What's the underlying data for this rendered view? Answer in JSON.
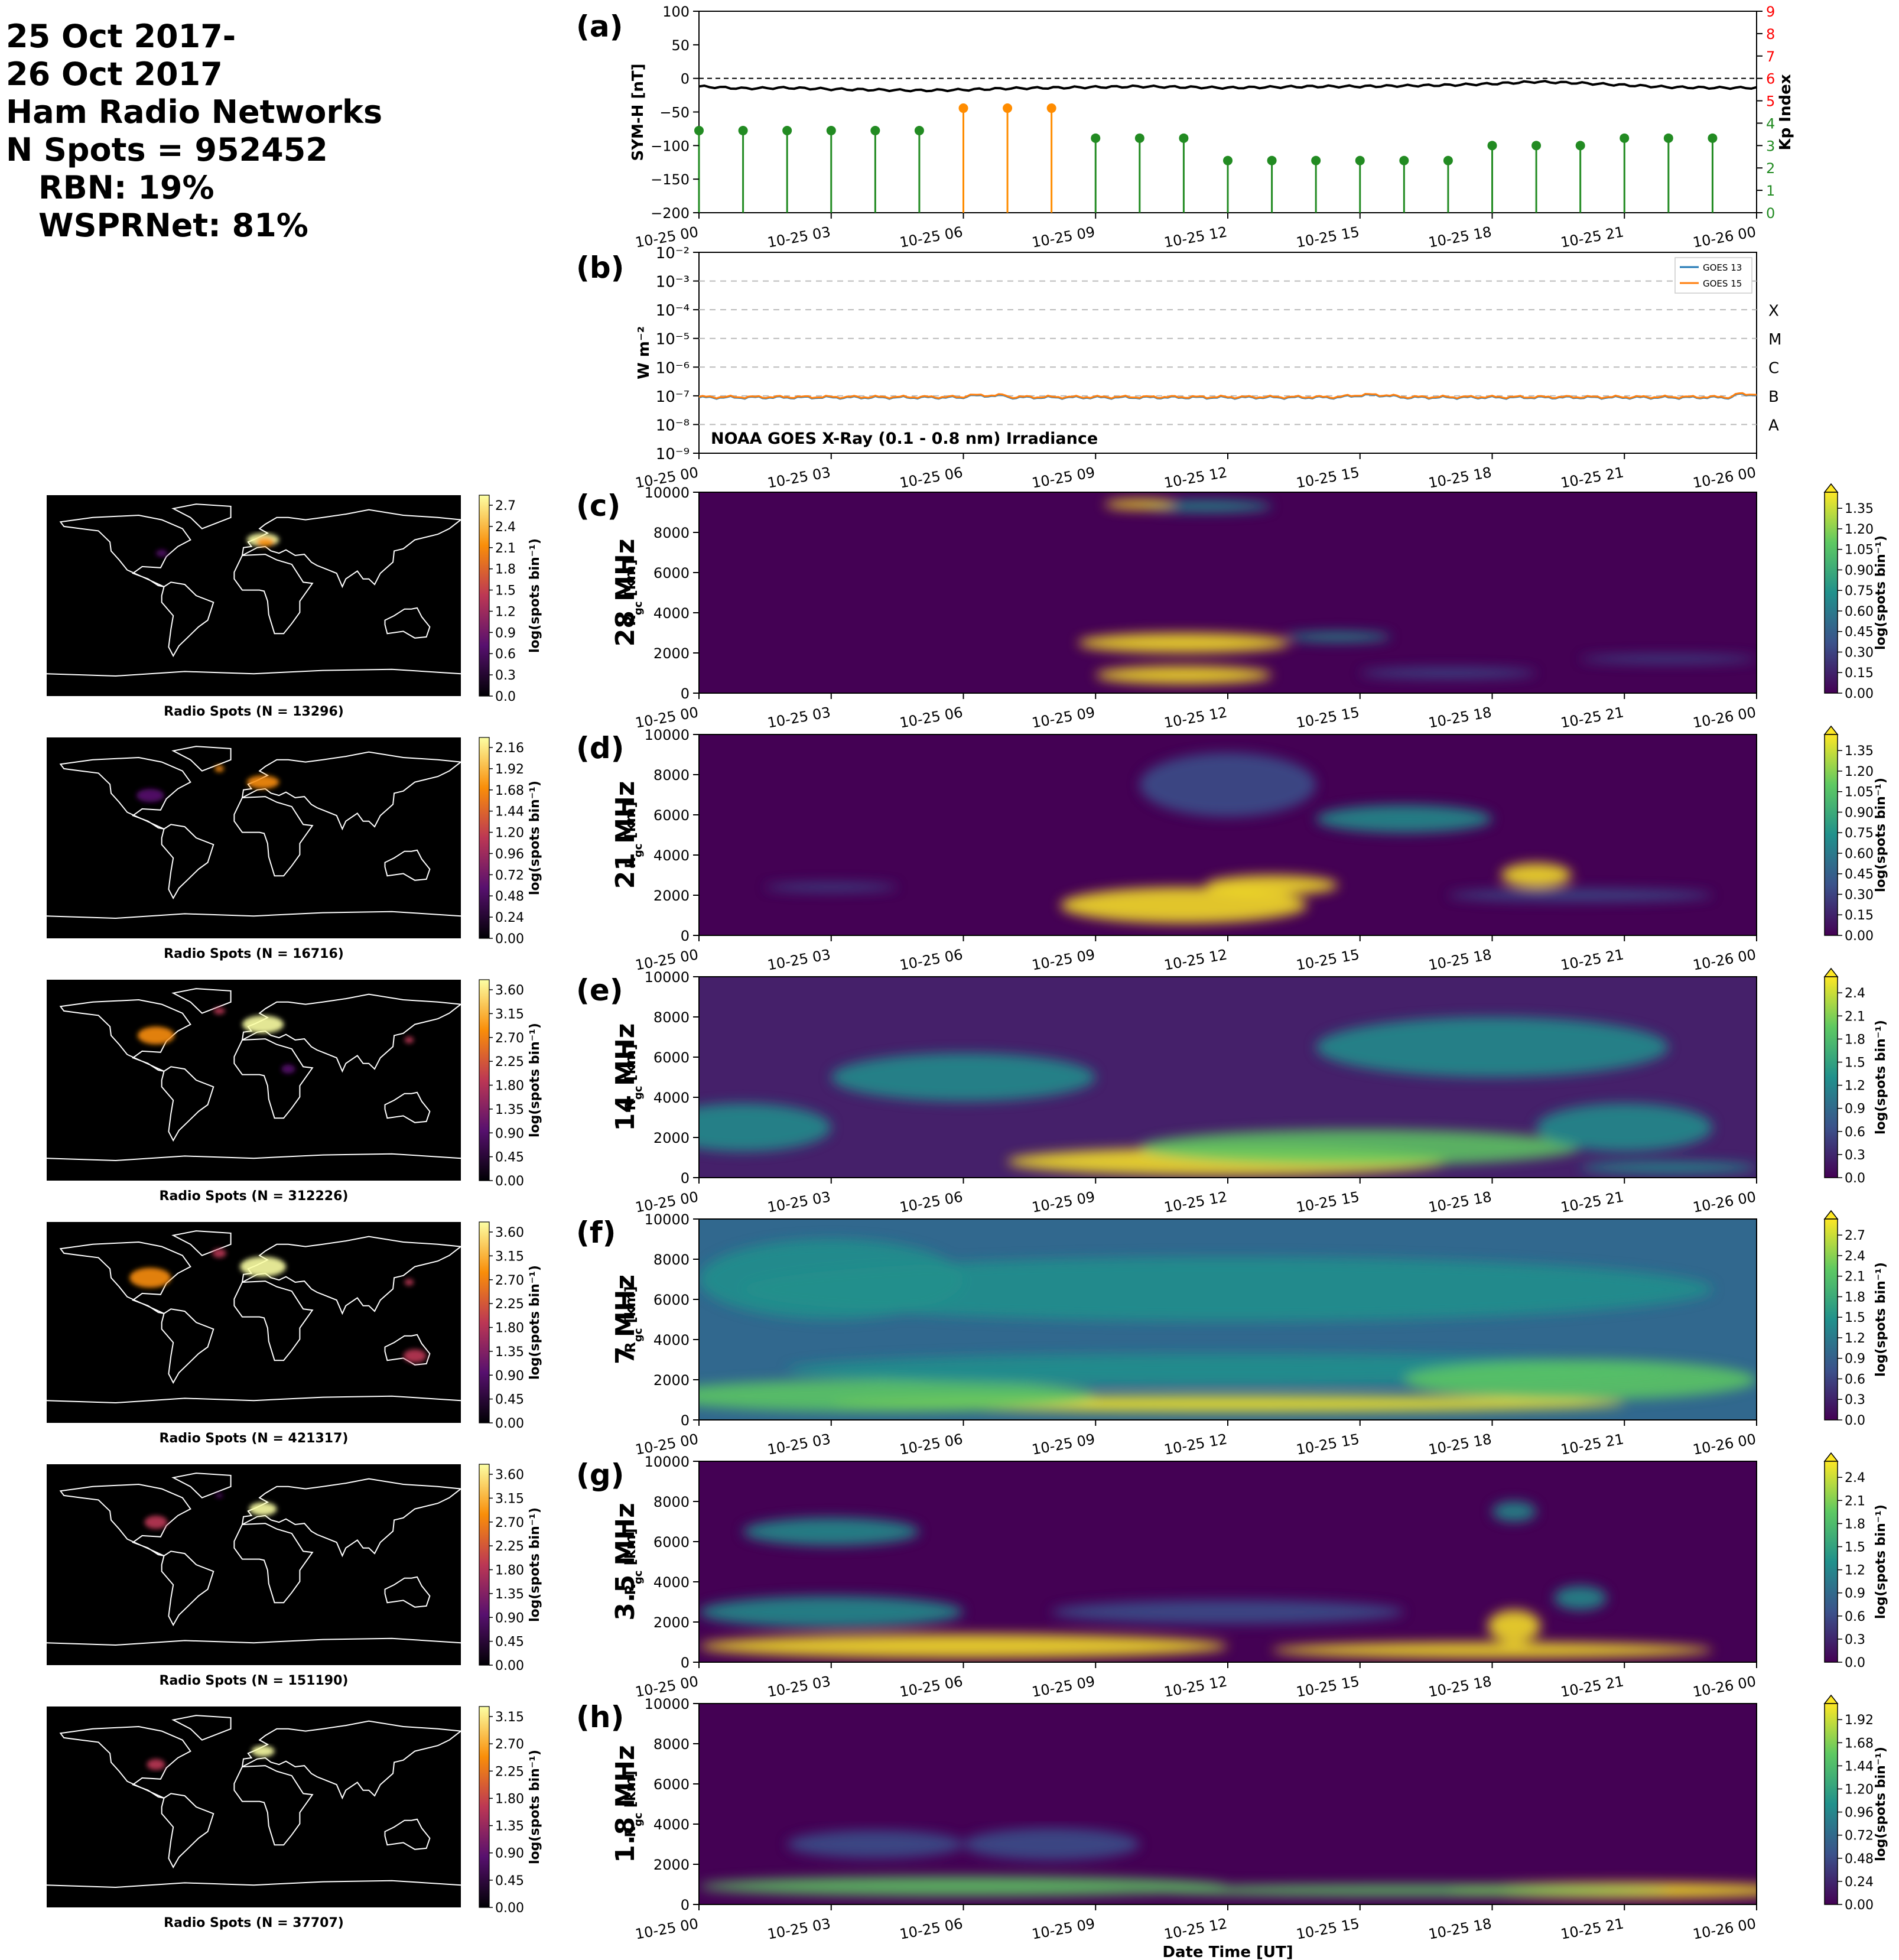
{
  "summary": {
    "line1": "25 Oct 2017-",
    "line2": "26 Oct 2017",
    "line3": "Ham Radio Networks",
    "line4": "N Spots = 952452",
    "line5": "RBN: 19%",
    "line6": "WSPRNet: 81%"
  },
  "time_ticks": [
    "10-25 00",
    "10-25 03",
    "10-25 06",
    "10-25 09",
    "10-25 12",
    "10-25 15",
    "10-25 18",
    "10-25 21",
    "10-26 00"
  ],
  "xlabel_bottom": "Date Time [UT]",
  "colors": {
    "kp_green": "#228b22",
    "kp_orange": "#ff8c00",
    "goes13": "#1f77b4",
    "goes15": "#ff7f0e",
    "right_axis_red": "#ff0000"
  },
  "panel_a": {
    "label": "(a)",
    "ylabel_left": "SYM-H [nT]",
    "ylabel_right": "Kp Index",
    "ylim_left": [
      -200,
      100
    ],
    "yticks_left": [
      "100",
      "50",
      "0",
      "−50",
      "−100",
      "−150",
      "−200"
    ],
    "ylim_right": [
      0,
      9
    ],
    "yticks_right": [
      "0",
      "1",
      "2",
      "3",
      "4",
      "5",
      "6",
      "7",
      "8",
      "9"
    ],
    "symh_approx": [
      -12,
      -15,
      -14,
      -16,
      -17,
      -18,
      -17,
      -15,
      -14,
      -13,
      -12,
      -13,
      -14,
      -13,
      -12,
      -12,
      -11,
      -10,
      -8,
      -5,
      -7,
      -10,
      -13,
      -14,
      -14
    ],
    "kp_hours": [
      0,
      1,
      2,
      3,
      4,
      5,
      6,
      7,
      8,
      9,
      10,
      11,
      12,
      13,
      14,
      15,
      16,
      17,
      18,
      19,
      20,
      21,
      22,
      23,
      24
    ],
    "kp_values": [
      3.67,
      3.67,
      3.67,
      3.67,
      3.67,
      3.67,
      4.67,
      4.67,
      4.67,
      3.33,
      3.33,
      3.33,
      2.33,
      2.33,
      2.33,
      2.33,
      2.33,
      2.33,
      3.0,
      3.0,
      3.0,
      3.33,
      3.33,
      3.33
    ]
  },
  "panel_b": {
    "label": "(b)",
    "ylabel": "W m⁻²",
    "yticks": [
      "10⁻²",
      "10⁻³",
      "10⁻⁴",
      "10⁻⁵",
      "10⁻⁶",
      "10⁻⁷",
      "10⁻⁸",
      "10⁻⁹"
    ],
    "classes": [
      "X",
      "M",
      "C",
      "B",
      "A"
    ],
    "legend": [
      "GOES 13",
      "GOES 15"
    ],
    "annotation": "NOAA GOES X-Ray (0.1 - 0.8 nm) Irradiance",
    "flux_exponent_approx": -7.05
  },
  "rti_common": {
    "ylabel": "R_gc [km]",
    "yticks": [
      "0",
      "2000",
      "4000",
      "6000",
      "8000",
      "10000"
    ],
    "cbar_label": "log(spots bin⁻¹)",
    "map_cbar_label": "log(spots bin⁻¹)"
  },
  "panels": [
    {
      "label": "(c)",
      "band": "28 MHz",
      "map_title": "Radio Spots (N = 13296)",
      "map_ticks": [
        "2.7",
        "2.4",
        "2.1",
        "1.8",
        "1.5",
        "1.2",
        "0.9",
        "0.6",
        "0.3",
        "0.0"
      ],
      "cbar_ticks": [
        "1.35",
        "1.20",
        "1.05",
        "0.90",
        "0.75",
        "0.60",
        "0.45",
        "0.30",
        "0.15",
        "0.00"
      ]
    },
    {
      "label": "(d)",
      "band": "21 MHz",
      "map_title": "Radio Spots (N = 16716)",
      "map_ticks": [
        "2.16",
        "1.92",
        "1.68",
        "1.44",
        "1.20",
        "0.96",
        "0.72",
        "0.48",
        "0.24",
        "0.00"
      ],
      "cbar_ticks": [
        "1.35",
        "1.20",
        "1.05",
        "0.90",
        "0.75",
        "0.60",
        "0.45",
        "0.30",
        "0.15",
        "0.00"
      ]
    },
    {
      "label": "(e)",
      "band": "14 MHz",
      "map_title": "Radio Spots (N = 312226)",
      "map_ticks": [
        "3.60",
        "3.15",
        "2.70",
        "2.25",
        "1.80",
        "1.35",
        "0.90",
        "0.45",
        "0.00"
      ],
      "cbar_ticks": [
        "2.4",
        "2.1",
        "1.8",
        "1.5",
        "1.2",
        "0.9",
        "0.6",
        "0.3",
        "0.0"
      ]
    },
    {
      "label": "(f)",
      "band": "7 MHz",
      "map_title": "Radio Spots (N = 421317)",
      "map_ticks": [
        "3.60",
        "3.15",
        "2.70",
        "2.25",
        "1.80",
        "1.35",
        "0.90",
        "0.45",
        "0.00"
      ],
      "cbar_ticks": [
        "2.7",
        "2.4",
        "2.1",
        "1.8",
        "1.5",
        "1.2",
        "0.9",
        "0.6",
        "0.3",
        "0.0"
      ]
    },
    {
      "label": "(g)",
      "band": "3.5 MHz",
      "map_title": "Radio Spots (N = 151190)",
      "map_ticks": [
        "3.60",
        "3.15",
        "2.70",
        "2.25",
        "1.80",
        "1.35",
        "0.90",
        "0.45",
        "0.00"
      ],
      "cbar_ticks": [
        "2.4",
        "2.1",
        "1.8",
        "1.5",
        "1.2",
        "0.9",
        "0.6",
        "0.3",
        "0.0"
      ]
    },
    {
      "label": "(h)",
      "band": "1.8 MHz",
      "map_title": "Radio Spots (N = 37707)",
      "map_ticks": [
        "3.15",
        "2.70",
        "2.25",
        "1.80",
        "1.35",
        "0.90",
        "0.45",
        "0.00"
      ],
      "cbar_ticks": [
        "1.92",
        "1.68",
        "1.44",
        "1.20",
        "0.96",
        "0.72",
        "0.48",
        "0.24",
        "0.00"
      ]
    }
  ],
  "chart_data": [
    {
      "type": "line",
      "title": "",
      "ylabel": "SYM-H [nT]",
      "ylim": [
        -200,
        100
      ],
      "x": [
        "10-25 00",
        "10-25 03",
        "10-25 06",
        "10-25 09",
        "10-25 12",
        "10-25 15",
        "10-25 18",
        "10-25 21",
        "10-26 00"
      ],
      "series": [
        {
          "name": "",
          "values": [
            -12,
            -16,
            -18,
            -14,
            -13,
            -12,
            -8,
            -12,
            -14
          ]
        }
      ]
    },
    {
      "type": "bar",
      "title": "",
      "ylabel": "Kp Index",
      "ylim": [
        0,
        9
      ],
      "categories": [
        "00",
        "01",
        "02",
        "03",
        "04",
        "05",
        "06",
        "07",
        "08",
        "09",
        "10",
        "11",
        "12",
        "13",
        "14",
        "15",
        "16",
        "17",
        "18",
        "19",
        "20",
        "21",
        "22",
        "23"
      ],
      "values": [
        3.67,
        3.67,
        3.67,
        3.67,
        3.67,
        3.67,
        4.67,
        4.67,
        4.67,
        3.33,
        3.33,
        3.33,
        2.33,
        2.33,
        2.33,
        2.33,
        2.33,
        2.33,
        3.0,
        3.0,
        3.0,
        3.33,
        3.33,
        3.33
      ]
    },
    {
      "type": "line",
      "title": "",
      "ylabel": "W m⁻²",
      "scale": "log",
      "ylim": [
        1e-09,
        0.01
      ],
      "series": [
        {
          "name": "GOES 13",
          "values": [
            8e-08,
            9e-08,
            9e-08,
            1e-07,
            9e-08,
            9e-08,
            1.1e-07,
            8e-08,
            9e-08
          ]
        },
        {
          "name": "GOES 15",
          "values": [
            8e-08,
            9e-08,
            9e-08,
            1e-07,
            9e-08,
            9e-08,
            1.2e-07,
            9e-08,
            1e-07
          ]
        }
      ]
    },
    {
      "type": "heatmap",
      "band": "28 MHz",
      "ylim": [
        0,
        10000
      ]
    },
    {
      "type": "heatmap",
      "band": "21 MHz",
      "ylim": [
        0,
        10000
      ]
    },
    {
      "type": "heatmap",
      "band": "14 MHz",
      "ylim": [
        0,
        10000
      ]
    },
    {
      "type": "heatmap",
      "band": "7 MHz",
      "ylim": [
        0,
        10000
      ]
    },
    {
      "type": "heatmap",
      "band": "3.5 MHz",
      "ylim": [
        0,
        10000
      ]
    },
    {
      "type": "heatmap",
      "band": "1.8 MHz",
      "ylim": [
        0,
        10000
      ]
    }
  ]
}
